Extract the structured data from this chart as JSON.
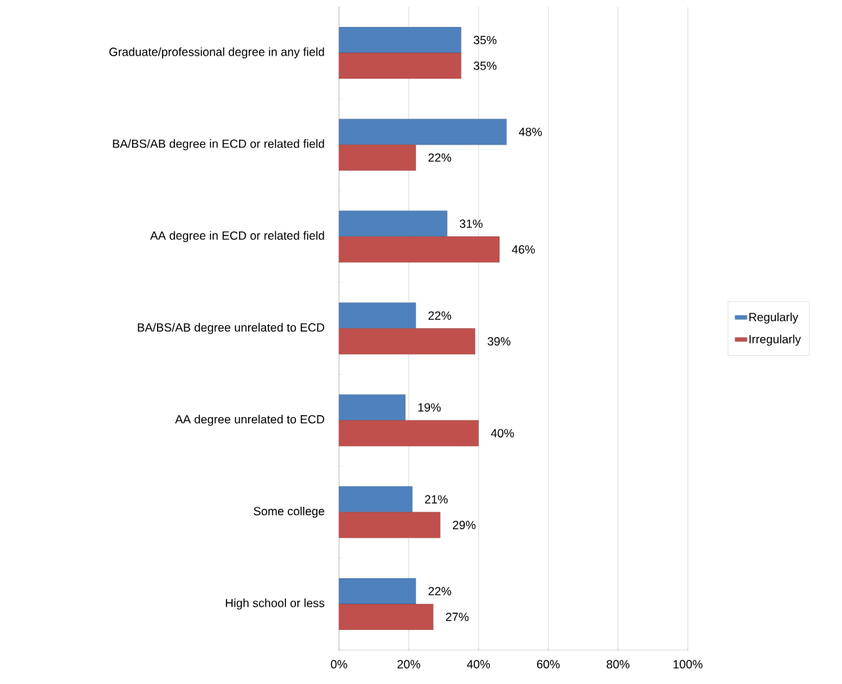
{
  "chart_data": {
    "type": "bar",
    "orientation": "horizontal",
    "categories": [
      "Graduate/professional degree in any field",
      "BA/BS/AB degree in ECD or related field",
      "AA degree in ECD or related field",
      "BA/BS/AB degree unrelated to ECD",
      "AA degree unrelated to ECD",
      "Some college",
      "High school or less"
    ],
    "series": [
      {
        "name": "Regularly",
        "color": "#4f81bd",
        "values": [
          35,
          48,
          31,
          22,
          19,
          21,
          22
        ],
        "value_labels": [
          "35%",
          "48%",
          "31%",
          "22%",
          "19%",
          "21%",
          "22%"
        ]
      },
      {
        "name": "Irregularly",
        "color": "#c0504d",
        "values": [
          35,
          22,
          46,
          39,
          40,
          29,
          27
        ],
        "value_labels": [
          "35%",
          "22%",
          "46%",
          "39%",
          "40%",
          "29%",
          "27%"
        ]
      }
    ],
    "xlim": [
      0,
      100
    ],
    "xticks": [
      {
        "value": 0,
        "label": "0%"
      },
      {
        "value": 20,
        "label": "20%"
      },
      {
        "value": 40,
        "label": "40%"
      },
      {
        "value": 60,
        "label": "60%"
      },
      {
        "value": 80,
        "label": "80%"
      },
      {
        "value": 100,
        "label": "100%"
      }
    ],
    "grid": "x",
    "legend": "right"
  }
}
